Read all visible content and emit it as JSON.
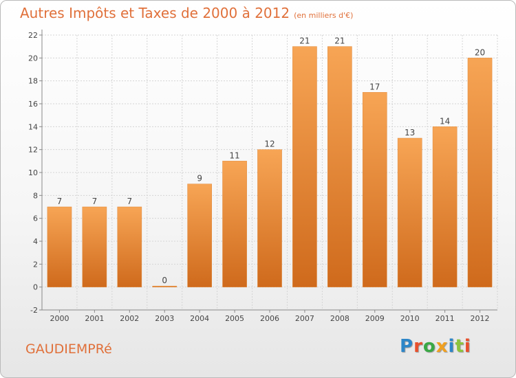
{
  "header": {
    "title": "Autres Impôts et Taxes de 2000 à 2012",
    "unit": "(en milliers d'€)"
  },
  "footer": {
    "commune": "GAUDIEMPRé",
    "logo_text": "Proxiti",
    "logo_colors": [
      "#2d86c8",
      "#e8502c",
      "#3aa845",
      "#f0a020",
      "#2d86c8",
      "#8cc43c",
      "#e8502c"
    ]
  },
  "colors": {
    "bar_top": "#f7a555",
    "bar_bottom": "#cf6a1c",
    "text_accent": "#e0703a",
    "grid": "#d4d4d4",
    "label": "#444444"
  },
  "chart_data": {
    "type": "bar",
    "title": "Autres Impôts et Taxes de 2000 à 2012",
    "subtitle": "(en milliers d'€)",
    "categories": [
      "2000",
      "2001",
      "2002",
      "2003",
      "2004",
      "2005",
      "2006",
      "2007",
      "2008",
      "2009",
      "2010",
      "2011",
      "2012"
    ],
    "values": [
      7,
      7,
      7,
      0,
      9,
      11,
      12,
      21,
      21,
      17,
      13,
      14,
      20
    ],
    "ylim": [
      -2,
      22
    ],
    "yticks": [
      -2,
      0,
      2,
      4,
      6,
      8,
      10,
      12,
      14,
      16,
      18,
      20,
      22
    ],
    "grid": true,
    "legend": "none"
  }
}
